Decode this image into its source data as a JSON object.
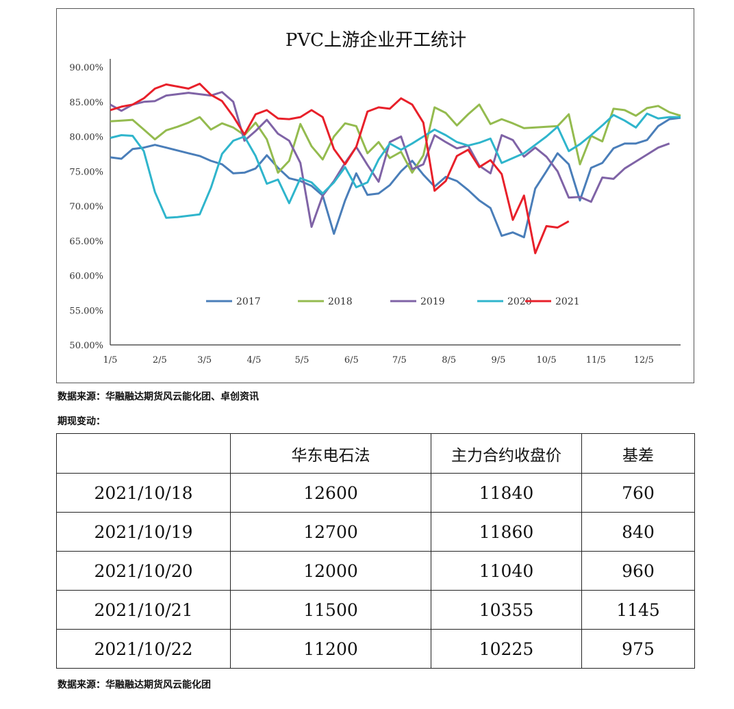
{
  "chart_data": {
    "type": "line",
    "title": "PVC上游企业开工统计",
    "xlabel": "",
    "ylabel": "",
    "ylim": [
      50,
      90
    ],
    "y_ticks": [
      "90.00%",
      "85.00%",
      "80.00%",
      "75.00%",
      "70.00%",
      "65.00%",
      "60.00%",
      "55.00%",
      "50.00%"
    ],
    "x_ticks": [
      "1/5",
      "2/5",
      "3/5",
      "4/5",
      "5/5",
      "6/5",
      "7/5",
      "8/5",
      "9/5",
      "10/5",
      "11/5",
      "12/5"
    ],
    "grid": false,
    "legend": "bottom-inside",
    "x": [
      "1/5",
      "1/12",
      "1/19",
      "1/26",
      "2/2",
      "2/9",
      "2/16",
      "2/23",
      "3/2",
      "3/9",
      "3/16",
      "3/23",
      "3/30",
      "4/6",
      "4/13",
      "4/20",
      "4/27",
      "5/4",
      "5/11",
      "5/18",
      "5/25",
      "6/1",
      "6/8",
      "6/15",
      "6/22",
      "6/29",
      "7/6",
      "7/13",
      "7/20",
      "7/27",
      "8/3",
      "8/10",
      "8/17",
      "8/24",
      "8/31",
      "9/7",
      "9/14",
      "9/21",
      "9/28",
      "10/5",
      "10/12",
      "10/19",
      "10/26",
      "11/2",
      "11/9",
      "11/16",
      "11/23",
      "11/30",
      "12/7",
      "12/14",
      "12/21",
      "12/28"
    ],
    "series": [
      {
        "name": "2017",
        "color": "#4a7eb9",
        "values": [
          77,
          76.8,
          78.2,
          78.4,
          78.8,
          78.4,
          78,
          77.6,
          77.2,
          76.5,
          76,
          74.7,
          74.8,
          75.4,
          77.3,
          75.5,
          74,
          73.6,
          72.9,
          71.5,
          66,
          70.8,
          74.7,
          71.6,
          71.8,
          73,
          75,
          76.5,
          74.5,
          72.8,
          74.2,
          73.6,
          72.3,
          70.8,
          69.7,
          65.7,
          66.2,
          65.5,
          72.5,
          75,
          77.6,
          76,
          70.8,
          75.5,
          76.2,
          78.3,
          79,
          79,
          79.5,
          81.5,
          82.5,
          82.7
        ]
      },
      {
        "name": "2018",
        "color": "#94bb4f",
        "values": [
          82.2,
          82.3,
          82.4,
          81,
          79.6,
          80.9,
          81.4,
          82,
          82.8,
          81,
          81.9,
          81.3,
          80.2,
          82,
          79.6,
          74.8,
          76.5,
          81.8,
          78.6,
          76.7,
          80,
          81.9,
          81.5,
          77.6,
          79.2,
          76.9,
          77.8,
          74.8,
          77.3,
          84.2,
          83.4,
          81.6,
          83.2,
          84.6,
          81.8,
          82.5,
          81.9,
          81.2,
          81.3,
          81.4,
          81.5,
          83.2,
          76,
          80.1,
          79.3,
          84,
          83.8,
          83,
          84.1,
          84.4,
          83.5,
          83
        ]
      },
      {
        "name": "2019",
        "color": "#7f63a6",
        "values": [
          84.6,
          83.7,
          84.6,
          85,
          85.1,
          85.9,
          86.1,
          86.3,
          86.1,
          85.9,
          86.4,
          85,
          79.4,
          80.8,
          82.4,
          80.4,
          79.4,
          76.2,
          67,
          71.5,
          73.6,
          76.2,
          78.5,
          75.9,
          73.5,
          79.2,
          80,
          75.3,
          76,
          80.2,
          79.2,
          78.3,
          78.7,
          75.8,
          74.7,
          80.2,
          79.5,
          77.1,
          78.4,
          77.1,
          75,
          71.2,
          71.3,
          70.6,
          74.1,
          73.9,
          75.4,
          76.4,
          77.4,
          78.4,
          79,
          null
        ]
      },
      {
        "name": "2020",
        "color": "#2fb5cc",
        "values": [
          79.8,
          80.2,
          80.1,
          77.9,
          72,
          68.3,
          68.4,
          68.6,
          68.8,
          72.6,
          77.5,
          79.4,
          80,
          77.2,
          73.2,
          73.8,
          70.4,
          74,
          73.4,
          71.8,
          73.4,
          75.6,
          72.7,
          73.4,
          76.7,
          79,
          78.1,
          79,
          80,
          81,
          80.2,
          79.2,
          78.7,
          79.1,
          79.7,
          76.2,
          76.9,
          77.6,
          78.8,
          80,
          81.4,
          77.9,
          78.9,
          80.2,
          81.6,
          83.1,
          82.3,
          81.3,
          83.3,
          82.6,
          82.8,
          82.8
        ]
      },
      {
        "name": "2021",
        "color": "#e8202a",
        "values": [
          83.8,
          84.3,
          84.6,
          85.5,
          86.9,
          87.5,
          87.2,
          86.9,
          87.6,
          86,
          85.1,
          82.9,
          80.3,
          83.2,
          83.8,
          82.6,
          82.5,
          82.8,
          83.8,
          82.8,
          78.2,
          76,
          78.5,
          83.6,
          84.2,
          84,
          85.5,
          84.6,
          82,
          72.2,
          73.6,
          77.2,
          78.1,
          75.6,
          76.6,
          74.6,
          68,
          71.5,
          63.2,
          67.1,
          66.9,
          67.8,
          null,
          null,
          null,
          null,
          null,
          null,
          null,
          null,
          null,
          null
        ]
      }
    ]
  },
  "source1": "数据来源：华融融达期货风云能化团、卓创资讯",
  "section_label": "期现变动：",
  "table": {
    "headers": [
      "",
      "华东电石法",
      "主力合约收盘价",
      "基差"
    ],
    "rows": [
      [
        "2021/10/18",
        "12600",
        "11840",
        "760"
      ],
      [
        "2021/10/19",
        "12700",
        "11860",
        "840"
      ],
      [
        "2021/10/20",
        "12000",
        "11040",
        "960"
      ],
      [
        "2021/10/21",
        "11500",
        "10355",
        "1145"
      ],
      [
        "2021/10/22",
        "11200",
        "10225",
        "975"
      ]
    ]
  },
  "source2": "数据来源：华融融达期货风云能化团"
}
